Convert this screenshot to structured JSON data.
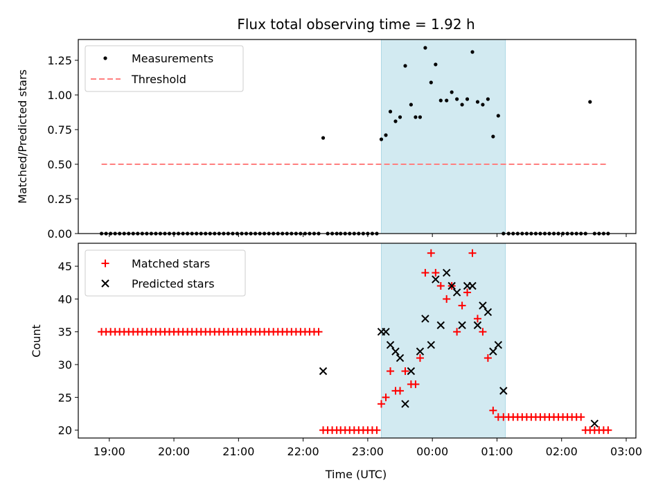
{
  "chart_data": {
    "type": "scatter",
    "title": "Flux total observing time = 1.92 h",
    "xlabel": "Time (UTC)",
    "x_unit": "hours since 19:00 UTC on the plot's time axis",
    "x_ticks": [
      {
        "value": 0,
        "label": "19:00"
      },
      {
        "value": 1,
        "label": "20:00"
      },
      {
        "value": 2,
        "label": "21:00"
      },
      {
        "value": 3,
        "label": "22:00"
      },
      {
        "value": 4,
        "label": "23:00"
      },
      {
        "value": 5,
        "label": "00:00"
      },
      {
        "value": 6,
        "label": "01:00"
      },
      {
        "value": 7,
        "label": "02:00"
      },
      {
        "value": 8,
        "label": "03:00"
      }
    ],
    "xlim": [
      -0.48,
      8.15
    ],
    "shaded_interval": {
      "start": 4.21,
      "end": 6.13,
      "color": "#add8e6"
    },
    "colors": {
      "measurements": "#000000",
      "threshold": "#ff7f7f",
      "matched": "#ff0000",
      "predicted": "#000000"
    },
    "top_panel": {
      "ylabel": "Matched/Predicted stars",
      "ylim": [
        0,
        1.4
      ],
      "y_ticks": [
        "0.00",
        "0.25",
        "0.50",
        "0.75",
        "1.00",
        "1.25"
      ],
      "legend_position": "upper left",
      "threshold": {
        "name": "Threshold",
        "value": 0.5,
        "x_range": [
          -0.12,
          7.7
        ]
      },
      "measurements": {
        "name": "Measurements",
        "x": [
          -0.12,
          -0.05,
          0.02,
          0.09,
          0.16,
          0.23,
          0.3,
          0.37,
          0.44,
          0.51,
          0.58,
          0.65,
          0.72,
          0.79,
          0.86,
          0.93,
          1.0,
          1.07,
          1.14,
          1.21,
          1.28,
          1.35,
          1.42,
          1.49,
          1.56,
          1.63,
          1.7,
          1.77,
          1.84,
          1.91,
          1.98,
          2.05,
          2.12,
          2.19,
          2.26,
          2.33,
          2.4,
          2.47,
          2.54,
          2.61,
          2.68,
          2.75,
          2.82,
          2.89,
          2.96,
          3.03,
          3.1,
          3.17,
          3.24,
          3.31,
          3.38,
          3.45,
          3.52,
          3.58,
          3.65,
          3.72,
          3.79,
          3.86,
          3.93,
          4.0,
          4.07,
          4.14,
          4.21,
          4.28,
          4.35,
          4.43,
          4.5,
          4.58,
          4.67,
          4.74,
          4.81,
          4.89,
          4.98,
          5.05,
          5.13,
          5.22,
          5.3,
          5.38,
          5.46,
          5.54,
          5.62,
          5.7,
          5.78,
          5.86,
          5.94,
          6.02,
          6.1,
          6.18,
          6.25,
          6.32,
          6.39,
          6.46,
          6.53,
          6.6,
          6.67,
          6.74,
          6.81,
          6.88,
          6.95,
          7.02,
          7.09,
          7.16,
          7.23,
          7.3,
          7.37,
          7.44,
          7.51,
          7.58,
          7.65,
          7.72
        ],
        "y": [
          0,
          0,
          0,
          0,
          0,
          0,
          0,
          0,
          0,
          0,
          0,
          0,
          0,
          0,
          0,
          0,
          0,
          0,
          0,
          0,
          0,
          0,
          0,
          0,
          0,
          0,
          0,
          0,
          0,
          0,
          0,
          0,
          0,
          0,
          0,
          0,
          0,
          0,
          0,
          0,
          0,
          0,
          0,
          0,
          0,
          0,
          0,
          0,
          0,
          0.69,
          0,
          0,
          0,
          0,
          0,
          0,
          0,
          0,
          0,
          0,
          0,
          0,
          0.68,
          0.71,
          0.88,
          0.81,
          0.84,
          1.21,
          0.93,
          0.84,
          0.84,
          1.34,
          1.09,
          1.22,
          0.96,
          0.96,
          1.02,
          0.97,
          0.93,
          0.97,
          1.31,
          0.95,
          0.93,
          0.97,
          0.7,
          0.85,
          0,
          0,
          0,
          0,
          0,
          0,
          0,
          0,
          0,
          0,
          0,
          0,
          0,
          0,
          0,
          0,
          0,
          0,
          0,
          0.95,
          0,
          0,
          0,
          0
        ]
      }
    },
    "bottom_panel": {
      "ylabel": "Count",
      "ylim": [
        18.8,
        48.5
      ],
      "y_ticks": [
        "20",
        "25",
        "30",
        "35",
        "40",
        "45"
      ],
      "legend_position": "upper left",
      "matched": {
        "name": "Matched stars",
        "x": [
          -0.12,
          -0.05,
          0.02,
          0.09,
          0.16,
          0.23,
          0.3,
          0.37,
          0.44,
          0.51,
          0.58,
          0.65,
          0.72,
          0.79,
          0.86,
          0.93,
          1.0,
          1.07,
          1.14,
          1.21,
          1.28,
          1.35,
          1.42,
          1.49,
          1.56,
          1.63,
          1.7,
          1.77,
          1.84,
          1.91,
          1.98,
          2.05,
          2.12,
          2.19,
          2.26,
          2.33,
          2.4,
          2.47,
          2.54,
          2.61,
          2.68,
          2.75,
          2.82,
          2.89,
          2.96,
          3.03,
          3.1,
          3.17,
          3.24,
          3.31,
          3.38,
          3.45,
          3.52,
          3.58,
          3.65,
          3.72,
          3.79,
          3.86,
          3.93,
          4.0,
          4.07,
          4.14,
          4.21,
          4.28,
          4.35,
          4.43,
          4.5,
          4.58,
          4.67,
          4.74,
          4.81,
          4.89,
          4.98,
          5.05,
          5.13,
          5.22,
          5.3,
          5.38,
          5.46,
          5.54,
          5.62,
          5.7,
          5.78,
          5.86,
          5.94,
          6.02,
          6.1,
          6.18,
          6.25,
          6.32,
          6.39,
          6.46,
          6.53,
          6.6,
          6.67,
          6.74,
          6.81,
          6.88,
          6.95,
          7.02,
          7.09,
          7.16,
          7.23,
          7.3,
          7.37,
          7.44,
          7.51,
          7.58,
          7.65,
          7.72
        ],
        "y": [
          35,
          35,
          35,
          35,
          35,
          35,
          35,
          35,
          35,
          35,
          35,
          35,
          35,
          35,
          35,
          35,
          35,
          35,
          35,
          35,
          35,
          35,
          35,
          35,
          35,
          35,
          35,
          35,
          35,
          35,
          35,
          35,
          35,
          35,
          35,
          35,
          35,
          35,
          35,
          35,
          35,
          35,
          35,
          35,
          35,
          35,
          35,
          35,
          35,
          20,
          20,
          20,
          20,
          20,
          20,
          20,
          20,
          20,
          20,
          20,
          20,
          20,
          24,
          25,
          29,
          26,
          26,
          29,
          27,
          27,
          31,
          44,
          47,
          44,
          42,
          40,
          42,
          35,
          39,
          41,
          47,
          37,
          35,
          31,
          23,
          22,
          22,
          22,
          22,
          22,
          22,
          22,
          22,
          22,
          22,
          22,
          22,
          22,
          22,
          22,
          22,
          22,
          22,
          22,
          20,
          20,
          20,
          20,
          20,
          20
        ]
      },
      "predicted": {
        "name": "Predicted stars",
        "x": [
          3.31,
          4.21,
          4.28,
          4.35,
          4.43,
          4.5,
          4.58,
          4.67,
          4.81,
          4.89,
          4.98,
          5.05,
          5.13,
          5.22,
          5.3,
          5.38,
          5.46,
          5.54,
          5.62,
          5.7,
          5.78,
          5.86,
          5.94,
          6.02,
          6.1,
          7.51
        ],
        "y": [
          29,
          35,
          35,
          33,
          32,
          31,
          24,
          29,
          32,
          37,
          33,
          43,
          36,
          44,
          42,
          41,
          36,
          42,
          42,
          36,
          39,
          38,
          32,
          33,
          26,
          21
        ]
      }
    }
  }
}
